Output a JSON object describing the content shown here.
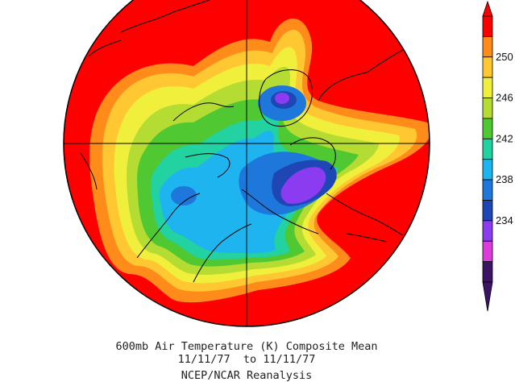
{
  "caption": {
    "line1": "600mb Air Temperature (K) Composite Mean",
    "line2": "11/11/77  to 11/11/77",
    "line3": "NCEP/NCAR Reanalysis"
  },
  "colorbar": {
    "orientation": "vertical",
    "labels": [
      "250",
      "246",
      "242",
      "238",
      "234"
    ],
    "bands": [
      {
        "color": "#ff0000"
      },
      {
        "color": "#ff8c1a"
      },
      {
        "color": "#ffc832"
      },
      {
        "color": "#f0f03c"
      },
      {
        "color": "#b4dc32"
      },
      {
        "color": "#50c832"
      },
      {
        "color": "#22d2a0"
      },
      {
        "color": "#1eb4f0"
      },
      {
        "color": "#1e78dc"
      },
      {
        "color": "#1e46b4"
      },
      {
        "color": "#8c3cf0"
      },
      {
        "color": "#dc3cdc"
      },
      {
        "color": "#3c1464"
      }
    ]
  },
  "map": {
    "projection": "polar-stereographic",
    "background_color": "#ff0000",
    "coastline_color": "#000000"
  }
}
